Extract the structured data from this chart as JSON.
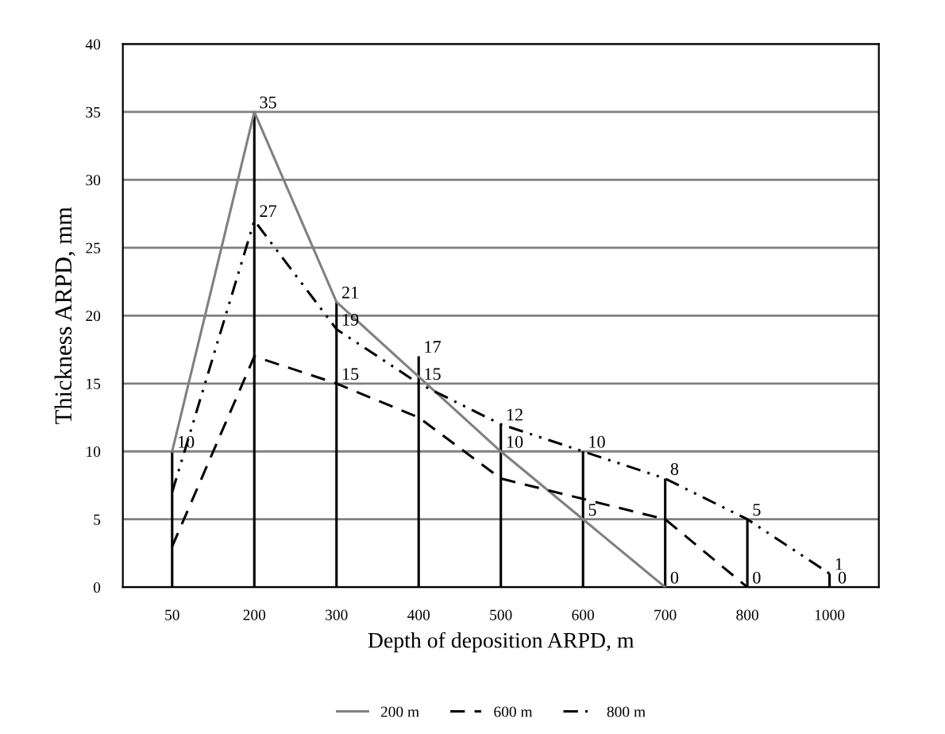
{
  "chart_data": {
    "type": "line",
    "xlabel": "Depth of deposition ARPD, m",
    "ylabel": "Thickness ARPD, mm",
    "categories": [
      "50",
      "200",
      "300",
      "400",
      "500",
      "600",
      "700",
      "800",
      "1000"
    ],
    "series": [
      {
        "type": "bar",
        "color": "#000000",
        "values": [
          10,
          35,
          21,
          17,
          12,
          10,
          8,
          5,
          1
        ],
        "value_labels": [
          "10",
          "35",
          "21",
          "17",
          "12",
          "10",
          "8",
          "5",
          "1"
        ]
      },
      {
        "name": "200 m",
        "color": "#808080",
        "line_style": "solid",
        "values": [
          10,
          35,
          21,
          15.5,
          10,
          5,
          0,
          null,
          null
        ],
        "value_labels": [
          null,
          null,
          null,
          null,
          "10",
          "5",
          "0",
          null,
          null
        ]
      },
      {
        "name": "600 m",
        "color": "#000000",
        "line_style": "dashed",
        "values": [
          3,
          17,
          15,
          12.5,
          8,
          6.5,
          5,
          0,
          null
        ],
        "value_labels": [
          null,
          null,
          "15",
          null,
          null,
          null,
          null,
          "0",
          null
        ]
      },
      {
        "name": "800 m",
        "color": "#000000",
        "line_style": "dashdot",
        "values": [
          7,
          27,
          19,
          15,
          12,
          10,
          8,
          5,
          1
        ],
        "value_labels": [
          null,
          "27",
          "19",
          "15",
          null,
          null,
          null,
          null,
          null
        ]
      }
    ],
    "annotations": [
      {
        "text": "0",
        "x": "1000",
        "y": 0
      }
    ],
    "ylim": [
      0,
      40
    ],
    "yticks": [
      0,
      5,
      10,
      15,
      20,
      25,
      30,
      35,
      40
    ],
    "grid": "y",
    "legend": "bottom",
    "marker": "none"
  }
}
